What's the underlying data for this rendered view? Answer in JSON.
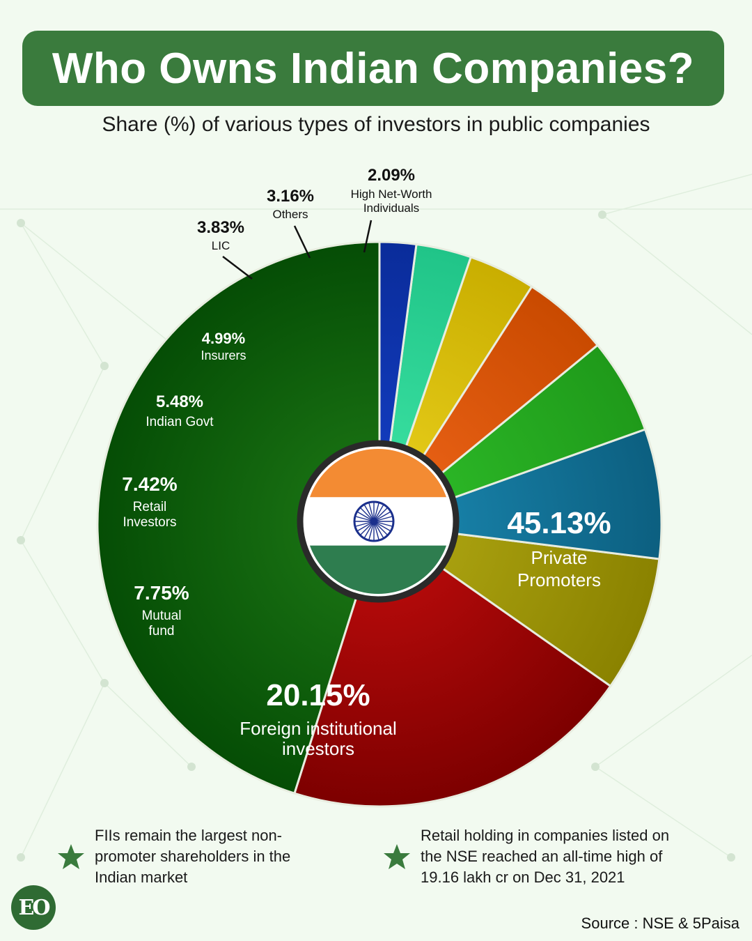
{
  "header": {
    "title": "Who Owns Indian Companies?",
    "subtitle": "Share (%) of various types of investors in public companies"
  },
  "chart_data": {
    "type": "pie",
    "style": "donut with Indian flag badge in center",
    "unit": "%",
    "slices": [
      {
        "value": 45.13,
        "label": "45.13%",
        "name_lines": [
          "Private",
          "Promoters"
        ],
        "color": "#1e7a16",
        "dark": "#054d05"
      },
      {
        "value": 20.15,
        "label": "20.15%",
        "name_lines": [
          "Foreign institutional",
          "investors"
        ],
        "color": "#c40d0d",
        "dark": "#7d0000"
      },
      {
        "value": 7.75,
        "label": "7.75%",
        "name_lines": [
          "Mutual",
          "fund"
        ],
        "color": "#b3aa14",
        "dark": "#8a8200"
      },
      {
        "value": 7.42,
        "label": "7.42%",
        "name_lines": [
          "Retail",
          "Investors"
        ],
        "color": "#1b8ab3",
        "dark": "#0c5f80"
      },
      {
        "value": 5.48,
        "label": "5.48%",
        "name_lines": [
          "Indian Govt"
        ],
        "color": "#2fbf2a",
        "dark": "#1f9a1a"
      },
      {
        "value": 4.99,
        "label": "4.99%",
        "name_lines": [
          "Insurers"
        ],
        "color": "#f0661a",
        "dark": "#c94a00"
      },
      {
        "value": 3.83,
        "label": "3.83%",
        "name_lines": [
          "LIC"
        ],
        "color": "#ecd21f",
        "dark": "#c9ae00"
      },
      {
        "value": 3.16,
        "label": "3.16%",
        "name_lines": [
          "Others"
        ],
        "color": "#3fe6a6",
        "dark": "#20c488"
      },
      {
        "value": 2.09,
        "label": "2.09%",
        "name_lines": [
          "High Net-Worth",
          "Individuals"
        ],
        "color": "#1440c8",
        "dark": "#0a2c9a"
      }
    ]
  },
  "notes": [
    {
      "icon": "star-icon",
      "text_lines": [
        "FIIs remain the largest non-",
        "promoter shareholders in the",
        "Indian market"
      ]
    },
    {
      "icon": "star-icon",
      "text_lines": [
        "Retail holding in companies listed on",
        "the NSE reached an all-time high of",
        "19.16 lakh cr on Dec 31, 2021"
      ]
    }
  ],
  "footer": {
    "logo_text": "EO",
    "source": "Source : NSE & 5Paisa"
  },
  "colors": {
    "accent_green": "#3a7b3d",
    "background": "#f2faf0",
    "flag_saffron": "#f38b33",
    "flag_white": "#ffffff",
    "flag_green": "#2e7d4f",
    "chakra_blue": "#1a2f8c"
  }
}
